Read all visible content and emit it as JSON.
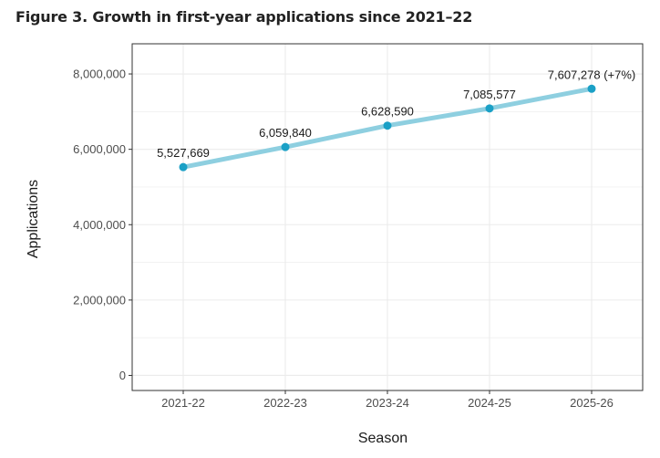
{
  "chart_data": {
    "type": "line",
    "title": "Figure 3. Growth in first-year applications since 2021–22",
    "xlabel": "Season",
    "ylabel": "Applications",
    "categories": [
      "2021-22",
      "2022-23",
      "2023-24",
      "2024-25",
      "2025-26"
    ],
    "values": [
      5527669,
      6059840,
      6628590,
      7085577,
      7607278
    ],
    "data_labels": [
      "5,527,669",
      "6,059,840",
      "6,628,590",
      "7,085,577",
      "7,607,278 (+7%)"
    ],
    "yticks": [
      0,
      2000000,
      4000000,
      6000000,
      8000000
    ],
    "ytick_labels": [
      "0",
      "2,000,000",
      "4,000,000",
      "6,000,000",
      "8,000,000"
    ],
    "ylim": [
      -400000,
      8800000
    ],
    "grid": true,
    "legend": "none",
    "colors": {
      "line": "#8ecfe0",
      "point": "#1aa0c6",
      "grid": "#ebebeb",
      "border": "#333333"
    }
  }
}
